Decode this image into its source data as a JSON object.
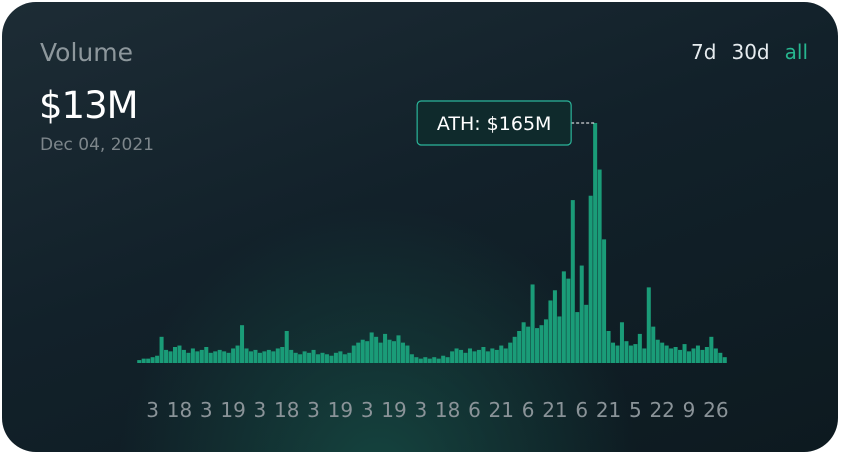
{
  "header": {
    "title": "Volume",
    "value": "$13M",
    "date": "Dec 04, 2021",
    "ranges": [
      "7d",
      "30d",
      "all"
    ],
    "active_range": 2
  },
  "chart_data": {
    "type": "bar",
    "color": "#1a9c78",
    "annotation": "ATH: $165M",
    "categories": [
      null,
      null,
      null,
      "3",
      null,
      null,
      null,
      null,
      null,
      "18",
      null,
      null,
      null,
      null,
      null,
      "3",
      null,
      null,
      null,
      null,
      null,
      "19",
      null,
      null,
      null,
      null,
      null,
      "3",
      null,
      null,
      null,
      null,
      null,
      "18",
      null,
      null,
      null,
      null,
      null,
      "3",
      null,
      null,
      null,
      null,
      null,
      "19",
      null,
      null,
      null,
      null,
      null,
      "3",
      null,
      null,
      null,
      null,
      null,
      "19",
      null,
      null,
      null,
      null,
      null,
      "3",
      null,
      null,
      null,
      null,
      null,
      "18",
      null,
      null,
      null,
      null,
      null,
      "6",
      null,
      null,
      null,
      null,
      null,
      "21",
      null,
      null,
      null,
      null,
      null,
      "6",
      null,
      null,
      null,
      null,
      null,
      "21",
      null,
      null,
      null,
      null,
      null,
      "6",
      null,
      null,
      null,
      null,
      null,
      "21",
      null,
      null,
      null,
      null,
      null,
      "5",
      null,
      null,
      null,
      null,
      null,
      "22",
      null,
      null,
      null,
      null,
      null,
      "9",
      null,
      null,
      null,
      null,
      null,
      "26",
      null,
      null
    ],
    "values": [
      2,
      3,
      3,
      4,
      5,
      18,
      9,
      8,
      11,
      12,
      9,
      7,
      10,
      8,
      9,
      11,
      7,
      8,
      9,
      8,
      7,
      10,
      12,
      26,
      10,
      8,
      9,
      7,
      8,
      9,
      8,
      10,
      11,
      22,
      9,
      7,
      6,
      8,
      7,
      9,
      6,
      7,
      6,
      5,
      7,
      8,
      6,
      7,
      12,
      14,
      16,
      15,
      21,
      18,
      14,
      20,
      16,
      15,
      19,
      14,
      12,
      6,
      4,
      3,
      4,
      3,
      4,
      3,
      5,
      4,
      8,
      10,
      9,
      7,
      10,
      8,
      9,
      11,
      8,
      10,
      9,
      12,
      10,
      14,
      18,
      22,
      28,
      25,
      54,
      24,
      26,
      30,
      43,
      50,
      32,
      63,
      58,
      112,
      35,
      67,
      40,
      115,
      165,
      133,
      85,
      22,
      14,
      12,
      28,
      15,
      12,
      13,
      20,
      10,
      52,
      25,
      16,
      14,
      12,
      10,
      11,
      9,
      13,
      8,
      10,
      12,
      9,
      11,
      18,
      10,
      7,
      4
    ],
    "ylim": [
      0,
      165
    ]
  }
}
